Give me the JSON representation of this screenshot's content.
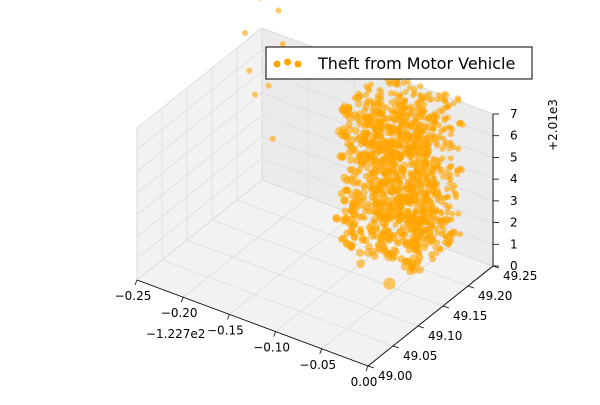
{
  "chart_data": {
    "type": "scatter",
    "projection": "3d",
    "series_name": "Theft from Motor Vehicle",
    "color": "#ffa500",
    "x_ticks": [
      "−0.25",
      "−0.20",
      "−0.15",
      "−0.10",
      "−0.05",
      "0.00"
    ],
    "x_offset": "−1.227e2",
    "x_range": [
      -122.95,
      -122.7
    ],
    "y_ticks": [
      "49.00",
      "49.05",
      "49.10",
      "49.15",
      "49.20",
      "49.25"
    ],
    "y_range": [
      49.0,
      49.25
    ],
    "z_ticks": [
      "0",
      "1",
      "2",
      "3",
      "4",
      "5",
      "6",
      "7"
    ],
    "z_offset": "+2.01e3",
    "z_range": [
      2010,
      2017
    ],
    "z_levels": [
      2010,
      2011,
      2012,
      2013,
      2014,
      2015,
      2016
    ],
    "dense_cluster": {
      "x_range": [
        -122.84,
        -122.75
      ],
      "y_range": [
        49.19,
        49.29
      ]
    },
    "outliers": [
      {
        "x": -122.98,
        "y": 49.3,
        "z": 2017.0
      },
      {
        "x": -122.97,
        "y": 49.32,
        "z": 2016.2
      },
      {
        "x": -122.99,
        "y": 49.29,
        "z": 2015.4
      },
      {
        "x": -122.96,
        "y": 49.31,
        "z": 2015.0
      },
      {
        "x": -122.98,
        "y": 49.28,
        "z": 2014.0
      },
      {
        "x": -122.97,
        "y": 49.3,
        "z": 2013.1
      },
      {
        "x": -122.99,
        "y": 49.31,
        "z": 2012.2
      },
      {
        "x": -122.96,
        "y": 49.29,
        "z": 2011.0
      },
      {
        "x": -122.74,
        "y": 49.1,
        "z": 2013.0
      },
      {
        "x": -122.7,
        "y": 49.12,
        "z": 2014.0
      },
      {
        "x": -122.72,
        "y": 49.08,
        "z": 2012.0
      },
      {
        "x": -122.8,
        "y": 49.17,
        "z": 2010.0
      }
    ]
  }
}
